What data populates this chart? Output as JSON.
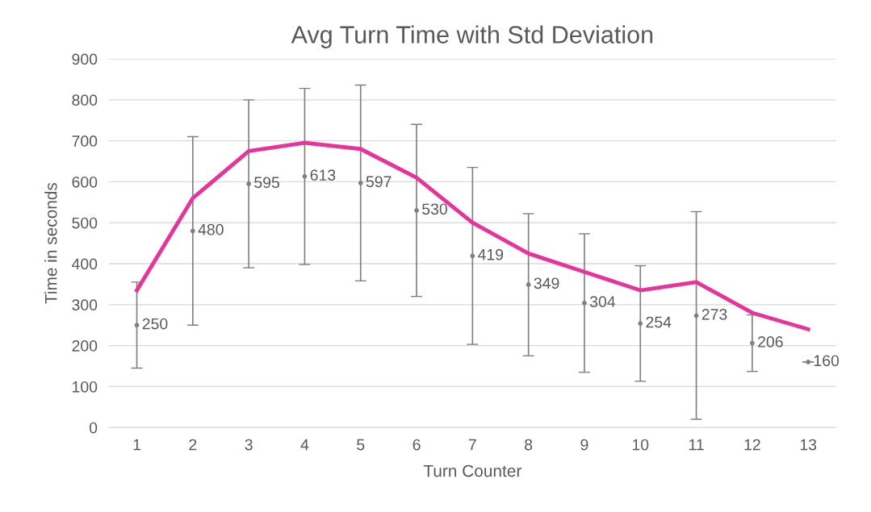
{
  "chart_data": {
    "type": "line",
    "title": "Avg Turn Time with Std Deviation",
    "xlabel": "Turn Counter",
    "ylabel": "Time in seconds",
    "categories": [
      "1",
      "2",
      "3",
      "4",
      "5",
      "6",
      "7",
      "8",
      "9",
      "10",
      "11",
      "12",
      "13"
    ],
    "series": [
      {
        "color": "#e8339b",
        "values": [
          335,
          560,
          675,
          695,
          680,
          610,
          500,
          425,
          380,
          335,
          355,
          280,
          240
        ]
      },
      {
        "type": "scatter",
        "color": "#808080",
        "marker": "circle",
        "values": [
          250,
          480,
          595,
          613,
          597,
          530,
          419,
          349,
          304,
          254,
          273,
          206,
          160
        ],
        "value_labels": [
          "250",
          "480",
          "595",
          "613",
          "597",
          "530",
          "419",
          "349",
          "304",
          "254",
          "273",
          "206",
          "160"
        ],
        "errors": [
          [
            145,
            355
          ],
          [
            250,
            710
          ],
          [
            390,
            800
          ],
          [
            398,
            828
          ],
          [
            358,
            836
          ],
          [
            320,
            740
          ],
          [
            203,
            635
          ],
          [
            175,
            522
          ],
          [
            135,
            473
          ],
          [
            113,
            395
          ],
          [
            20,
            527
          ],
          [
            137,
            275
          ],
          [
            160,
            160
          ]
        ]
      }
    ],
    "ylim": [
      0,
      900
    ],
    "yticks": [
      0,
      100,
      200,
      300,
      400,
      500,
      600,
      700,
      800,
      900
    ],
    "grid": "y"
  }
}
